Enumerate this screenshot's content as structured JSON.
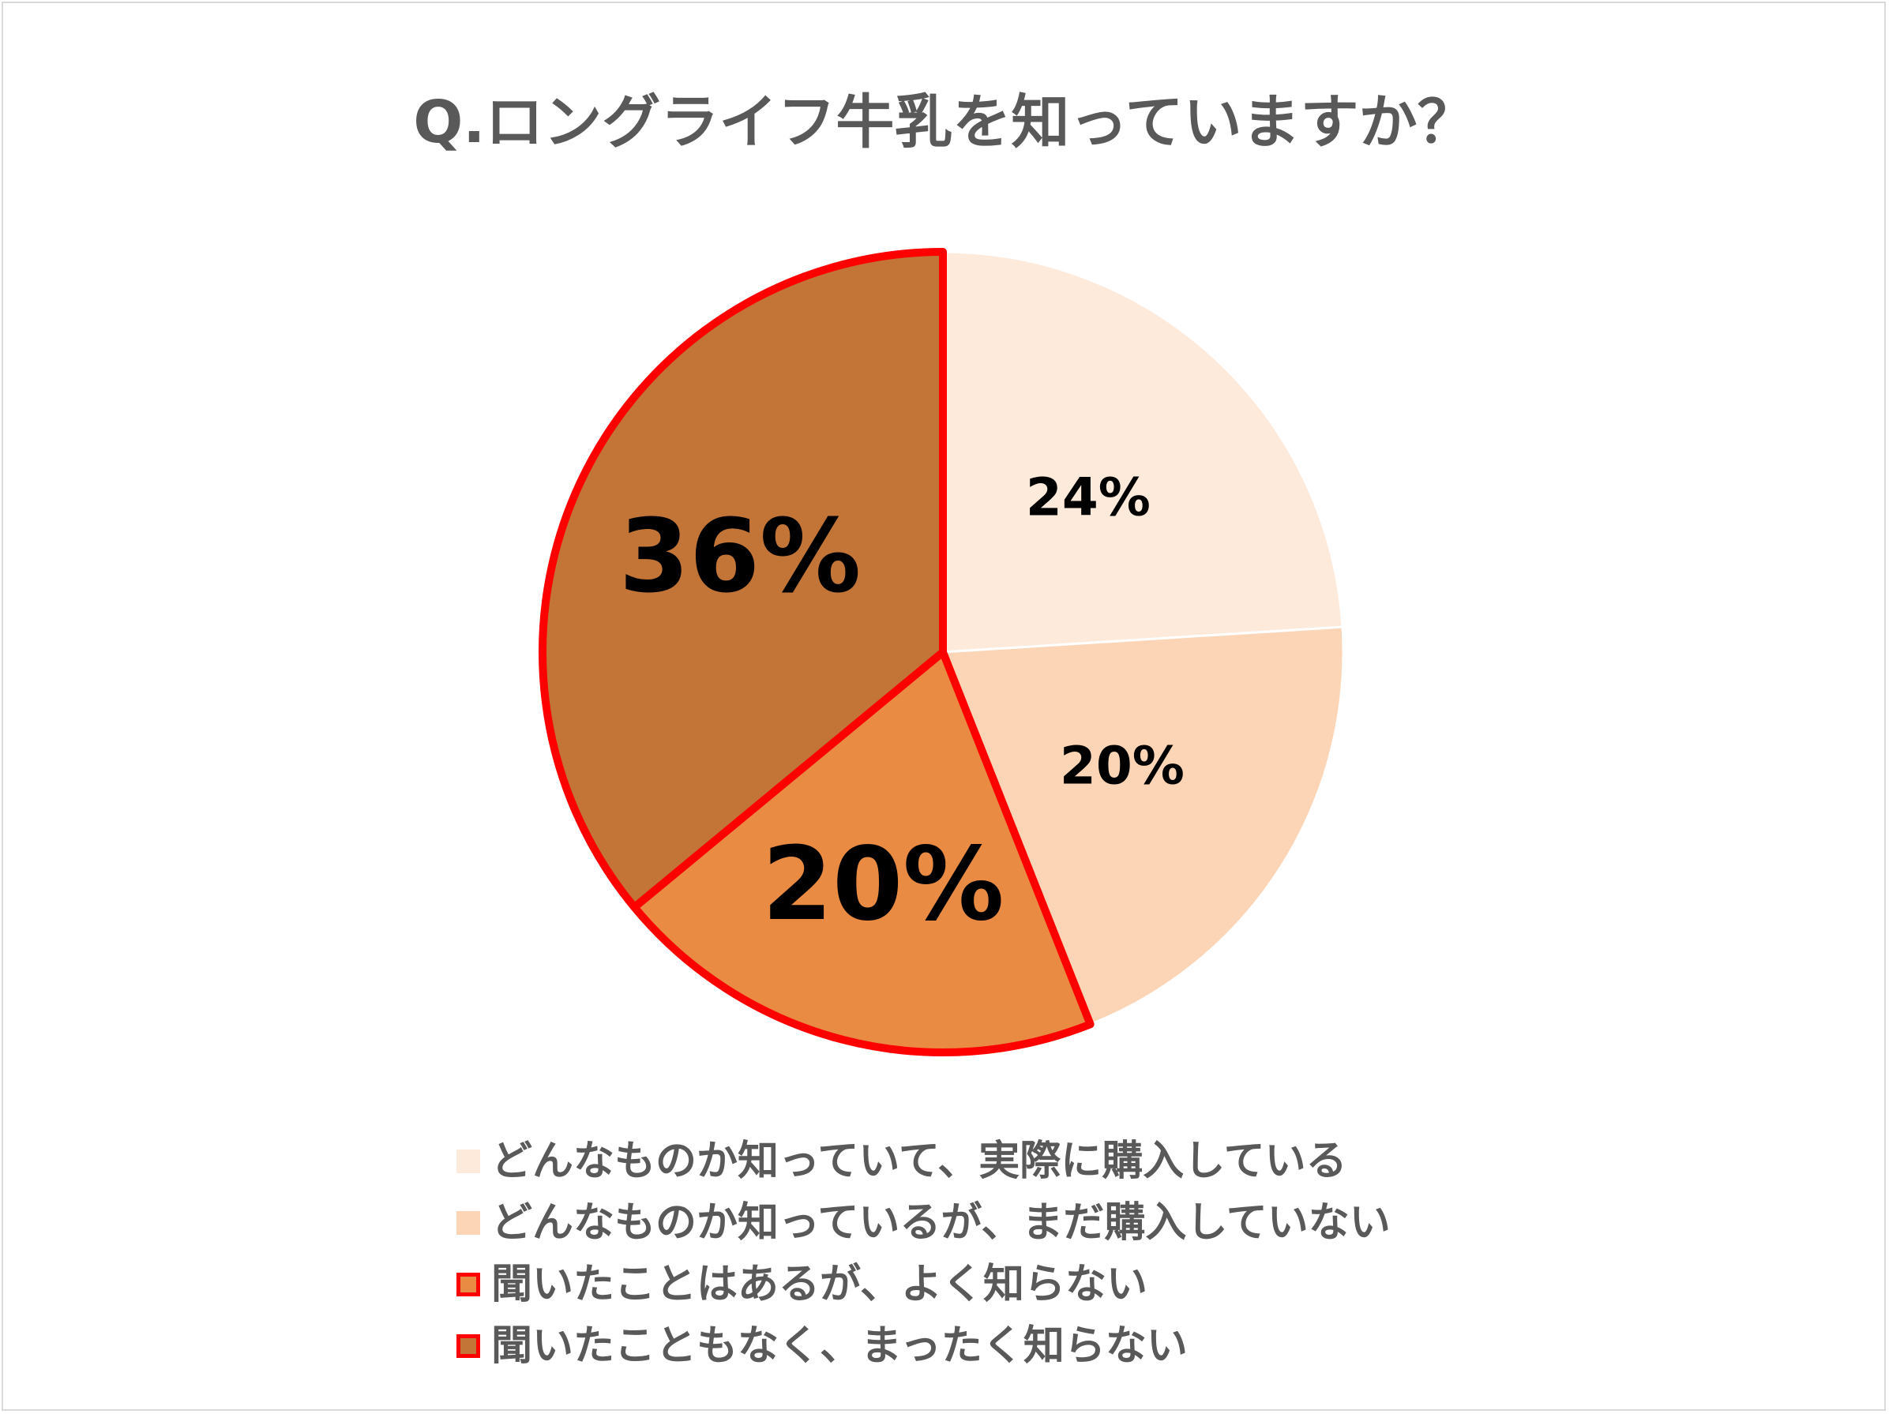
{
  "chart_data": {
    "type": "pie",
    "title": "Q.ロングライフ牛乳を知っていますか？",
    "start_angle_deg": 0,
    "direction": "clockwise",
    "highlight_outline_color": "#ff0000",
    "slices": [
      {
        "label": "どんなものか知っていて、実際に購入している",
        "value": 24,
        "display": "24%",
        "color": "#fdeadb",
        "highlighted": false
      },
      {
        "label": "どんなものか知っているが、まだ購入していない",
        "value": 20,
        "display": "20%",
        "color": "#fbd5b5",
        "highlighted": false
      },
      {
        "label": "聞いたことはあるが、よく知らない",
        "value": 20,
        "display": "20%",
        "color": "#e98b42",
        "highlighted": true
      },
      {
        "label": "聞いたこともなく、まったく知らない",
        "value": 36,
        "display": "36%",
        "color": "#c27536",
        "highlighted": true
      }
    ],
    "legend_position": "bottom"
  }
}
